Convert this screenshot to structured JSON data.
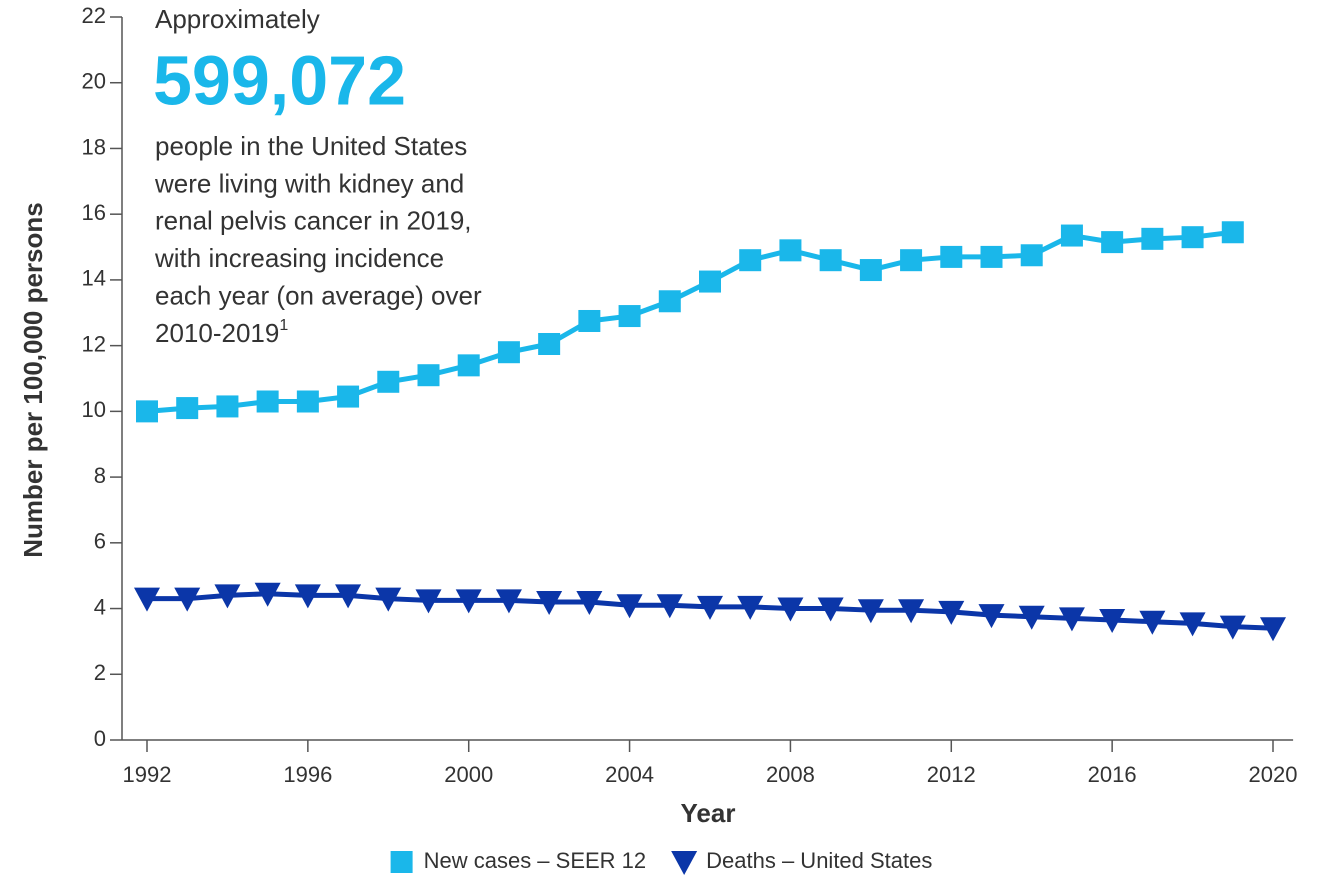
{
  "chart_data": {
    "type": "line",
    "x_label": "Year",
    "y_label": "Number per 100,000 persons",
    "annotation": {
      "intro": "Approximately",
      "number": "599,072",
      "lines": [
        "people in the United States",
        "were living with kidney and",
        "renal pelvis cancer in 2019,",
        "with increasing incidence",
        "each year (on average) over",
        "2010-2019"
      ],
      "superscript": "1"
    },
    "series": [
      {
        "name": "New cases – SEER 12",
        "color": "#1ab7ea",
        "marker": "square",
        "x": [
          1992,
          1993,
          1994,
          1995,
          1996,
          1997,
          1998,
          1999,
          2000,
          2001,
          2002,
          2003,
          2004,
          2005,
          2006,
          2007,
          2008,
          2009,
          2010,
          2011,
          2012,
          2013,
          2014,
          2015,
          2016,
          2017,
          2018,
          2019
        ],
        "values": [
          10.0,
          10.1,
          10.15,
          10.3,
          10.3,
          10.45,
          10.9,
          11.1,
          11.4,
          11.8,
          12.05,
          12.75,
          12.9,
          13.35,
          13.95,
          14.6,
          14.9,
          14.6,
          14.3,
          14.6,
          14.7,
          14.7,
          14.75,
          15.35,
          15.15,
          15.25,
          15.3,
          15.45
        ]
      },
      {
        "name": "Deaths – United States",
        "color": "#0b36a8",
        "marker": "triangle-down",
        "x": [
          1992,
          1993,
          1994,
          1995,
          1996,
          1997,
          1998,
          1999,
          2000,
          2001,
          2002,
          2003,
          2004,
          2005,
          2006,
          2007,
          2008,
          2009,
          2010,
          2011,
          2012,
          2013,
          2014,
          2015,
          2016,
          2017,
          2018,
          2019,
          2020
        ],
        "values": [
          4.3,
          4.3,
          4.4,
          4.45,
          4.4,
          4.4,
          4.3,
          4.25,
          4.25,
          4.25,
          4.2,
          4.2,
          4.1,
          4.1,
          4.05,
          4.05,
          4.0,
          4.0,
          3.95,
          3.95,
          3.9,
          3.8,
          3.75,
          3.7,
          3.65,
          3.6,
          3.55,
          3.45,
          3.4
        ]
      }
    ],
    "xlim": [
      1991.4,
      2020.5
    ],
    "xticks": [
      1992,
      1996,
      2000,
      2004,
      2008,
      2012,
      2016,
      2020
    ],
    "ylim": [
      0,
      22
    ],
    "yticks": [
      0,
      2,
      4,
      6,
      8,
      10,
      12,
      14,
      16,
      18,
      20,
      22
    ],
    "grid": false,
    "legend": "bottom"
  }
}
